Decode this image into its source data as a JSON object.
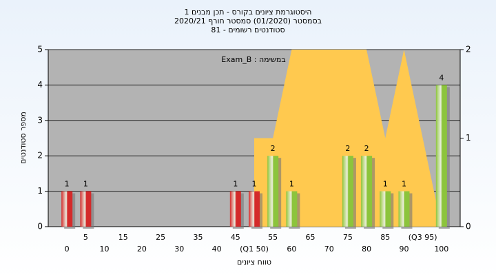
{
  "chart_data": {
    "type": "bar",
    "title_lines": [
      "היסטוגרמת ציונים בקורס - תכן מבנים 1",
      "בסמסטר  (01/2020)  סמסטר חורף  2020/21",
      "סטודנטים רשומים - 81"
    ],
    "annotation": "Exam_B : במשימה",
    "x_label": "טווח ציונים",
    "y_label": "מספר סטודנטים",
    "categories": [
      "0",
      "5",
      "10",
      "15",
      "20",
      "25",
      "30",
      "35",
      "40",
      "45",
      "(Q1 50)",
      "55",
      "60",
      "65",
      "70",
      "75",
      "80",
      "85",
      "90",
      "(Q3 95)",
      "100"
    ],
    "series": [
      {
        "type": "bar",
        "values": [
          1,
          1,
          0,
          0,
          0,
          0,
          0,
          0,
          0,
          1,
          1,
          2,
          1,
          0,
          0,
          2,
          2,
          1,
          1,
          0,
          4
        ],
        "colors": [
          "#d42a2a",
          "#d42a2a",
          "#d42a2a",
          "#d42a2a",
          "#d42a2a",
          "#d42a2a",
          "#d42a2a",
          "#d42a2a",
          "#d42a2a",
          "#d42a2a",
          "#d42a2a",
          "#8cc43c",
          "#8cc43c",
          "#8cc43c",
          "#8cc43c",
          "#8cc43c",
          "#8cc43c",
          "#8cc43c",
          "#8cc43c",
          "#8cc43c",
          "#8cc43c"
        ]
      },
      {
        "type": "area",
        "axis": "y2",
        "color": "#ffc94f",
        "values": [
          null,
          null,
          null,
          null,
          null,
          null,
          null,
          null,
          null,
          null,
          1,
          1,
          2,
          2,
          2,
          2,
          2,
          1,
          2,
          1,
          0
        ]
      }
    ],
    "ylim": [
      0,
      5
    ],
    "yticks": [
      0,
      1,
      2,
      3,
      4,
      5
    ],
    "y2lim": [
      0,
      2
    ],
    "y2ticks": [
      0,
      1,
      2
    ],
    "grid": true
  }
}
